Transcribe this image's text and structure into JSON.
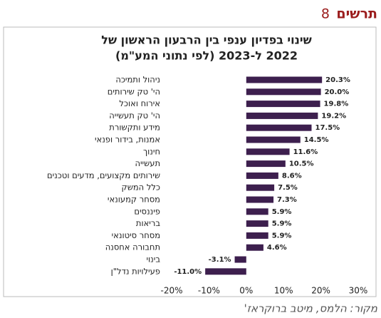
{
  "header": {
    "label": "תרשים",
    "number": "8"
  },
  "chart_data": {
    "type": "barh",
    "title_lines": [
      "שינוי בפדיון ענפי בין הרבעון הראשון של",
      "2022 ל-2023 (לפי נתוני המע\"מ)"
    ],
    "categories": [
      "ניהול ותמיכה",
      "הי' טק שירותים",
      "אירוח ואוכל",
      "הי' טק תעשייה",
      "מידע ותקשורת",
      "אמנות, בידור ופנאי",
      "חינוך",
      "תעשייה",
      "שירותים מקצועים, מדעים וטכנים",
      "כלל המשק",
      "מסחר קמעונאי",
      "פיננסים",
      "בריאות",
      "מסחר סיטונאי",
      "תחבורה אחסנה",
      "בינוי",
      "פעילויות נדל\"ן"
    ],
    "values": [
      20.3,
      20.0,
      19.8,
      19.2,
      17.5,
      14.5,
      11.6,
      10.5,
      8.6,
      7.5,
      7.3,
      5.9,
      5.9,
      5.9,
      4.6,
      -3.1,
      -11.0
    ],
    "value_labels": [
      "20.3%",
      "20.0%",
      "19.8%",
      "19.2%",
      "17.5%",
      "14.5%",
      "11.6%",
      "10.5%",
      "8.6%",
      "7.5%",
      "7.3%",
      "5.9%",
      "5.9%",
      "5.9%",
      "4.6%",
      "-3.1%",
      "-11.0%"
    ],
    "color": "#3d1f4e",
    "xlim": [
      -20,
      30
    ],
    "xticks": [
      {
        "value": -20,
        "label": "-20%"
      },
      {
        "value": -10,
        "label": "-10%"
      },
      {
        "value": 0,
        "label": "0%"
      },
      {
        "value": 10,
        "label": "10%"
      },
      {
        "value": 20,
        "label": "20%"
      },
      {
        "value": 30,
        "label": "30%"
      }
    ],
    "source": "מקור: הלמס, מיטב ברוקראז'"
  }
}
